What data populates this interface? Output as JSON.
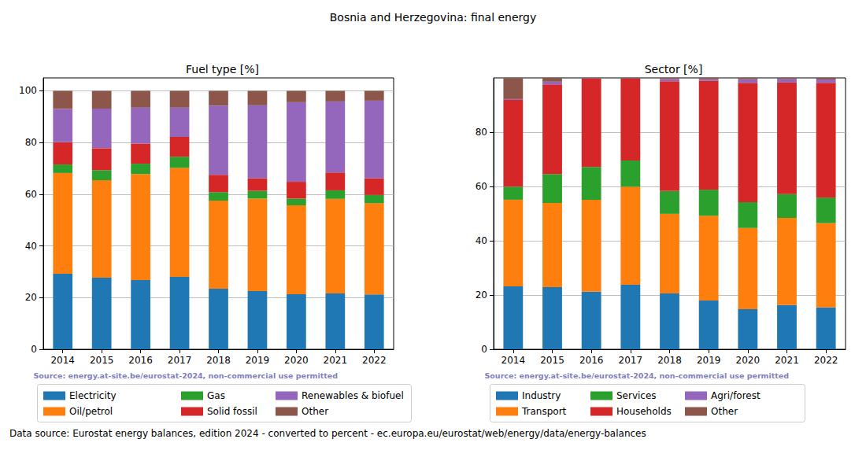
{
  "suptitle": "Bosnia and Herzegovina: final energy",
  "footer": "Data source: Eurostat energy balances, edition 2024 - converted to percent - ec.europa.eu/eurostat/web/energy/data/energy-balances",
  "chart_data": [
    {
      "type": "bar",
      "title": "Fuel type [%]",
      "stacked": true,
      "grid": true,
      "legend": "bottom",
      "annotation": "Source: energy.at-site.be/eurostat-2024, non-commercial use permitted",
      "categories": [
        "2014",
        "2015",
        "2016",
        "2017",
        "2018",
        "2019",
        "2020",
        "2021",
        "2022"
      ],
      "ylim": [
        0,
        105
      ],
      "yticks": [
        0,
        20,
        40,
        60,
        80,
        100
      ],
      "series": [
        {
          "name": "Electricity",
          "color": "#1f77b4",
          "values": [
            29.2,
            27.7,
            26.8,
            28.0,
            23.4,
            22.5,
            21.3,
            21.6,
            21.2
          ]
        },
        {
          "name": "Oil/petrol",
          "color": "#ff7f0e",
          "values": [
            39.0,
            37.7,
            41.0,
            42.2,
            34.1,
            35.8,
            34.4,
            36.6,
            35.3
          ]
        },
        {
          "name": "Gas",
          "color": "#2ca02c",
          "values": [
            3.3,
            3.9,
            4.0,
            4.3,
            3.3,
            3.0,
            2.6,
            3.3,
            3.2
          ]
        },
        {
          "name": "Solid fossil",
          "color": "#d62728",
          "values": [
            8.6,
            8.5,
            7.8,
            7.7,
            6.7,
            4.9,
            6.5,
            6.9,
            6.5
          ]
        },
        {
          "name": "Renewables & biofuel",
          "color": "#9467bd",
          "values": [
            12.9,
            15.3,
            13.9,
            11.3,
            26.8,
            28.2,
            30.8,
            27.5,
            30.0
          ]
        },
        {
          "name": "Other",
          "color": "#8c564b",
          "values": [
            7.0,
            6.9,
            6.5,
            6.5,
            5.7,
            5.6,
            4.4,
            4.1,
            3.8
          ]
        }
      ]
    },
    {
      "type": "bar",
      "title": "Sector [%]",
      "stacked": true,
      "grid": true,
      "legend": "bottom",
      "annotation": "Source: energy.at-site.be/eurostat-2024, non-commercial use permitted",
      "categories": [
        "2014",
        "2015",
        "2016",
        "2017",
        "2018",
        "2019",
        "2020",
        "2021",
        "2022"
      ],
      "ylim": [
        0,
        100
      ],
      "yticks": [
        0,
        20,
        40,
        60,
        80
      ],
      "series": [
        {
          "name": "Industry",
          "color": "#1f77b4",
          "values": [
            23.2,
            22.9,
            21.2,
            23.8,
            20.6,
            18.0,
            14.8,
            16.3,
            15.4
          ]
        },
        {
          "name": "Transport",
          "color": "#ff7f0e",
          "values": [
            31.9,
            31.0,
            33.9,
            36.1,
            29.3,
            31.2,
            29.9,
            32.1,
            31.1
          ]
        },
        {
          "name": "Services",
          "color": "#2ca02c",
          "values": [
            4.8,
            10.7,
            12.1,
            9.7,
            8.4,
            9.6,
            9.5,
            8.8,
            9.4
          ]
        },
        {
          "name": "Households",
          "color": "#d62728",
          "values": [
            32.0,
            33.0,
            32.5,
            30.2,
            40.5,
            40.1,
            44.0,
            41.1,
            42.3
          ]
        },
        {
          "name": "Agri/forest",
          "color": "#9467bd",
          "values": [
            0.3,
            1.0,
            0.2,
            0.1,
            0.8,
            0.6,
            1.3,
            1.2,
            1.2
          ]
        },
        {
          "name": "Other",
          "color": "#8c564b",
          "values": [
            7.7,
            1.4,
            0.1,
            0.1,
            0.4,
            0.5,
            0.5,
            0.5,
            0.6
          ]
        }
      ]
    }
  ]
}
